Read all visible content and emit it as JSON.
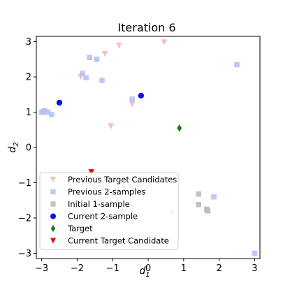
{
  "chart_data": {
    "type": "scatter",
    "title": "Iteration 6",
    "xlabel": "d",
    "xlabel_sub": "1",
    "ylabel": "d",
    "ylabel_sub": "2",
    "xlim": [
      -3.15,
      3.15
    ],
    "ylim": [
      -3.15,
      3.15
    ],
    "xticks": [
      -3,
      -2,
      -1,
      0,
      1,
      2,
      3
    ],
    "yticks": [
      -3,
      -2,
      -1,
      0,
      1,
      2,
      3
    ],
    "tick_labels": [
      "−3",
      "−2",
      "−1",
      "0",
      "1",
      "2",
      "3"
    ],
    "grid": false,
    "legend_position": "lower-left",
    "series": [
      {
        "name": "Previous Target Candidates",
        "marker": "triangle-down",
        "color": "#f2a3a3",
        "opacity": 0.7,
        "points": [
          [
            0.45,
            2.98
          ],
          [
            -0.82,
            2.89
          ],
          [
            -1.22,
            2.65
          ],
          [
            -1.9,
            2.0
          ],
          [
            -0.45,
            1.22
          ],
          [
            -1.05,
            0.6
          ]
        ]
      },
      {
        "name": "Previous 2-samples",
        "marker": "square",
        "color": "#b3bdf5",
        "opacity": 0.85,
        "points": [
          [
            -1.65,
            2.55
          ],
          [
            -1.45,
            2.5
          ],
          [
            -1.85,
            2.1
          ],
          [
            -1.75,
            1.98
          ],
          [
            -1.3,
            1.9
          ],
          [
            -0.45,
            1.37
          ],
          [
            2.5,
            2.35
          ],
          [
            -3.0,
            1.0
          ],
          [
            -2.92,
            1.05
          ],
          [
            -2.82,
            1.0
          ],
          [
            -2.72,
            0.93
          ],
          [
            -2.95,
            1.01
          ],
          [
            1.85,
            -1.4
          ],
          [
            0.68,
            -1.82
          ],
          [
            3.0,
            -3.0
          ]
        ]
      },
      {
        "name": "Initial 1-sample",
        "marker": "square",
        "color": "#bbbbbb",
        "opacity": 0.9,
        "points": [
          [
            1.42,
            -1.32
          ],
          [
            1.42,
            -1.62
          ],
          [
            1.65,
            -1.75
          ],
          [
            1.68,
            -1.8
          ]
        ]
      },
      {
        "name": "Current 2-sample",
        "marker": "circle",
        "color": "#0a14e0",
        "opacity": 1,
        "points": [
          [
            -2.5,
            1.27
          ],
          [
            -0.2,
            1.47
          ]
        ]
      },
      {
        "name": "Target",
        "marker": "diamond",
        "color": "#117a11",
        "opacity": 1,
        "points": [
          [
            0.88,
            0.55
          ]
        ]
      },
      {
        "name": "Current Target Candidate",
        "marker": "triangle-down",
        "color": "#e01010",
        "opacity": 1,
        "points": [
          [
            -1.6,
            -0.7
          ]
        ]
      }
    ]
  }
}
